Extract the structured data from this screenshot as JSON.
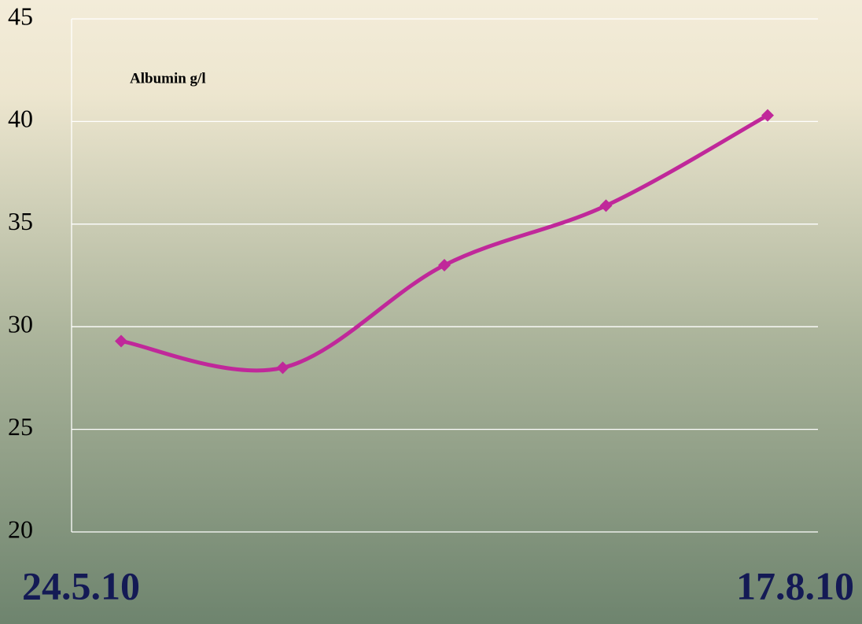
{
  "chart_data": {
    "type": "line",
    "title": "Albumin g/l",
    "categories": [
      "24.5.10",
      null,
      null,
      null,
      "17.8.10"
    ],
    "series": [
      {
        "name": "Albumin g/l",
        "color": "#c0289a",
        "values": [
          29.3,
          28.0,
          33.0,
          35.9,
          40.3
        ]
      }
    ],
    "ylim": [
      20,
      45
    ],
    "yticks": [
      20,
      25,
      30,
      35,
      40,
      45
    ],
    "grid": true,
    "smooth": true
  }
}
